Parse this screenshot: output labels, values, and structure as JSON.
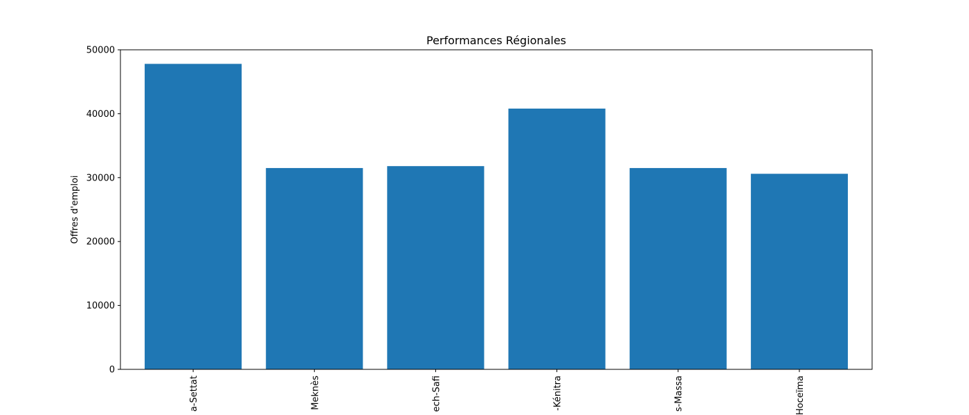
{
  "chart_data": {
    "type": "bar",
    "title": "Performances Régionales",
    "xlabel": "",
    "ylabel": "Offres d'emploi",
    "categories": [
      "Casablanca-Settat",
      "Fès-Meknès",
      "Marrakech-Safi",
      "Rabat-Salé-Kénitra",
      "Souss-Massa",
      "Tanger-Tétouan-Al Hoceïma"
    ],
    "tick_labels": [
      "a-Settat",
      "Meknès",
      "ech-Safi",
      "-Kénitra",
      "s-Massa",
      "Hoceïma"
    ],
    "values": [
      47800,
      31500,
      31800,
      40800,
      31500,
      30600
    ],
    "ylim": [
      0,
      50000
    ],
    "yticks": [
      0,
      10000,
      20000,
      30000,
      40000,
      50000
    ],
    "grid": false,
    "legend": "none",
    "bar_color": "#1f77b4"
  }
}
